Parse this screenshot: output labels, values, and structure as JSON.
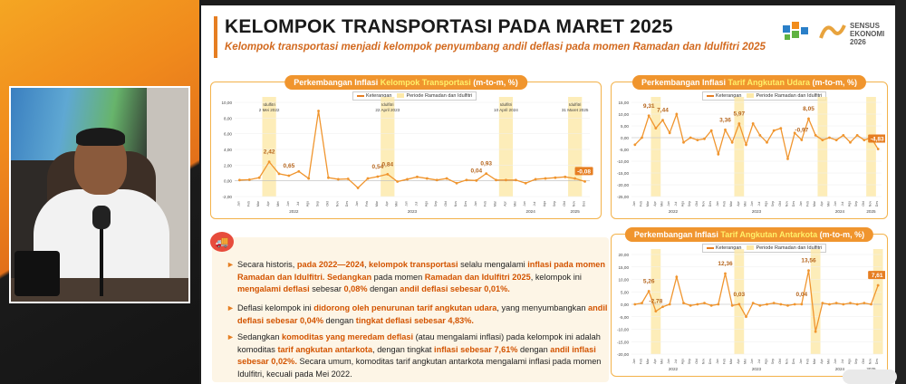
{
  "slide": {
    "title": "KELOMPOK TRANSPORTASI PADA MARET 2025",
    "subtitle": "Kelompok transportasi menjadi kelompok penyumbang andil deflasi pada momen Ramadan dan Idulfitri 2025",
    "logo_text": "SENSUS EKONOMI 2026"
  },
  "panels": {
    "left": {
      "title_a": "Perkembangan Inflasi ",
      "title_b": "Kelompok Transportasi",
      "title_c": " (m-to-m, %)"
    },
    "top_right": {
      "title_a": "Perkembangan Inflasi ",
      "title_b": "Tarif Angkutan Udara",
      "title_c": " (m-to-m, %)"
    },
    "bottom_right": {
      "title_a": "Perkembangan Inflasi ",
      "title_b": "Tarif Angkutan Antarkota",
      "title_c": " (m-to-m, %)"
    }
  },
  "legend": {
    "a": "Keterangan",
    "b": "Periode Ramadan dan Idulfitri"
  },
  "colors": {
    "accent": "#e67e22",
    "highlight": "#fde9a8",
    "line": "#f0952e"
  },
  "chart_data": [
    {
      "type": "line",
      "name": "kelompok-transportasi",
      "ylim": [
        -2,
        10
      ],
      "yticks": [
        "10,00",
        "8,00",
        "6,00",
        "4,00",
        "2,00",
        "0,00",
        "-2,00"
      ],
      "values": [
        0.1,
        0.15,
        0.4,
        2.42,
        0.9,
        0.65,
        1.2,
        0.3,
        8.9,
        0.4,
        0.2,
        0.25,
        -0.9,
        0.3,
        0.54,
        0.84,
        -0.1,
        0.2,
        0.5,
        0.3,
        0.1,
        0.3,
        -0.3,
        0.1,
        0.04,
        0.93,
        0.1,
        0.1,
        0.1,
        -0.3,
        0.2,
        0.3,
        0.4,
        0.5,
        0.3,
        -0.08
      ],
      "highlights": [
        3,
        15,
        27,
        34
      ],
      "idulfitri_labels": [
        "Idulfitri\n2 Mei 2022",
        "Idulfitri\n22 April 2023",
        "Idulfitri\n10 April 2024",
        "Idulfitri\n31 Maret 2025"
      ],
      "data_labels": [
        {
          "i": 3,
          "t": "2,42"
        },
        {
          "i": 5,
          "t": "0,65"
        },
        {
          "i": 14,
          "t": "0,54"
        },
        {
          "i": 15,
          "t": "0,84"
        },
        {
          "i": 24,
          "t": "0,04"
        },
        {
          "i": 25,
          "t": "0,93"
        },
        {
          "i": 35,
          "t": "-0,08"
        }
      ],
      "years": [
        "2022",
        "2023",
        "2024",
        "2025"
      ]
    },
    {
      "type": "line",
      "name": "tarif-angkutan-udara",
      "ylim": [
        -25,
        15
      ],
      "yticks": [
        "15,00",
        "10,00",
        "5,00",
        "0,00",
        "-5,00",
        "-10,00",
        "-15,00",
        "-20,00",
        "-25,00"
      ],
      "values": [
        -3,
        0,
        9.31,
        4,
        7.44,
        2,
        10,
        -2,
        0,
        -1,
        -0.5,
        3,
        -7,
        3.36,
        -2,
        5.97,
        -3,
        6,
        1,
        -2,
        3,
        4,
        -9,
        2,
        -0.97,
        8.05,
        1,
        -1,
        0,
        -1,
        1,
        -2,
        1,
        -1,
        0,
        -4.83
      ],
      "highlights": [
        3,
        15,
        27,
        34
      ],
      "data_labels": [
        {
          "i": 2,
          "t": "9,31"
        },
        {
          "i": 4,
          "t": "7,44"
        },
        {
          "i": 13,
          "t": "3,36"
        },
        {
          "i": 15,
          "t": "5,97"
        },
        {
          "i": 24,
          "t": "-0,97"
        },
        {
          "i": 25,
          "t": "8,05"
        },
        {
          "i": 35,
          "t": "-4,83"
        }
      ],
      "years": [
        "2022",
        "2023",
        "2024",
        "2025"
      ]
    },
    {
      "type": "line",
      "name": "tarif-angkutan-antarkota",
      "ylim": [
        -20,
        20
      ],
      "yticks": [
        "20,00",
        "15,00",
        "10,00",
        "5,00",
        "0,00",
        "-5,00",
        "-10,00",
        "-15,00",
        "-20,00"
      ],
      "values": [
        0,
        0.5,
        5.26,
        -2.78,
        -1,
        0,
        11,
        0.5,
        -0.5,
        0,
        0.5,
        -0.5,
        0,
        12.36,
        -0.5,
        0.03,
        -5,
        0.5,
        -0.5,
        0,
        0.5,
        0,
        -0.5,
        0,
        0.04,
        13.56,
        -11,
        0.5,
        0,
        0.5,
        0,
        0.5,
        0,
        0.5,
        0,
        7.61
      ],
      "highlights": [
        3,
        15,
        26,
        35
      ],
      "data_labels": [
        {
          "i": 2,
          "t": "5,26"
        },
        {
          "i": 3,
          "t": "-2,78"
        },
        {
          "i": 13,
          "t": "12,36"
        },
        {
          "i": 15,
          "t": "0,03"
        },
        {
          "i": 24,
          "t": "0,04"
        },
        {
          "i": 25,
          "t": "13,56"
        },
        {
          "i": 35,
          "t": "7,61"
        }
      ],
      "years": [
        "2022",
        "2023",
        "2024",
        "2025"
      ]
    }
  ],
  "text": {
    "p1": [
      "Secara historis, ",
      "pada 2022—2024",
      ", ",
      "kelompok transportasi",
      " selalu mengalami ",
      "inflasi pada momen Ramadan dan Idulfitri.",
      " ",
      "Sedangkan",
      " pada momen ",
      "Ramadan dan Idulfitri 2025",
      ", kelompok ini ",
      "mengalami deflasi",
      " sebesar ",
      "0,08%",
      " dengan ",
      "andil deflasi sebesar 0,01%."
    ],
    "p2": [
      "Deflasi kelompok ini ",
      "didorong oleh penurunan tarif angkutan udara",
      ", yang menyumbangkan ",
      "andil deflasi sebesar 0,04%",
      " dengan ",
      "tingkat deflasi sebesar 4,83%."
    ],
    "p3": [
      "Sedangkan ",
      "komoditas yang meredam deflasi",
      " (atau mengalami inflasi) pada kelompok ini adalah komoditas ",
      "tarif angkutan antarkota",
      ", dengan tingkat ",
      "inflasi sebesar 7,61%",
      " dengan ",
      "andil inflasi sebesar 0,02%.",
      " Secara umum, komoditas tarif angkutan antarkota mengalami inflasi pada momen Idulfitri, kecuali pada Mei 2022."
    ]
  }
}
